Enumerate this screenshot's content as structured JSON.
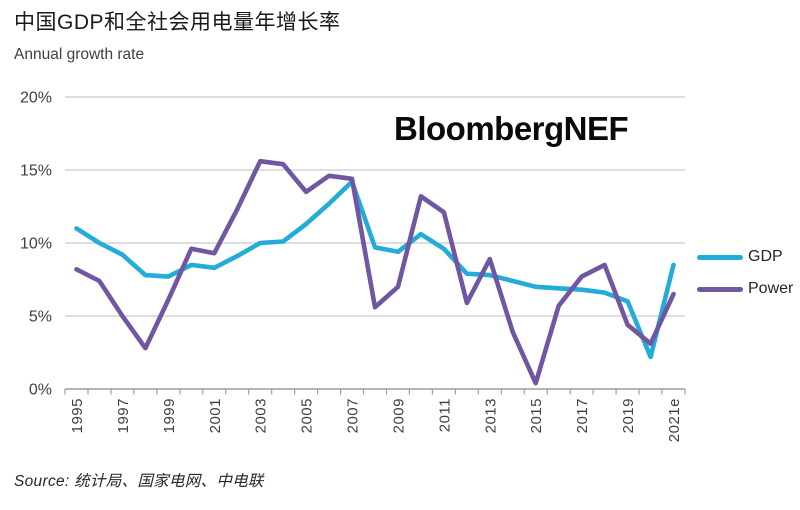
{
  "header": {
    "title": "中国GDP和全社会用电量年增长率",
    "subtitle": "Annual growth rate"
  },
  "watermark": "BloombergNEF",
  "source": {
    "text": "Source: 统计局、国家电网、中电联"
  },
  "colors": {
    "gdp_line": "#24acd8",
    "power_line": "#7157a2",
    "gridline": "#c9c9c9",
    "axis": "#9e9e9e",
    "axis_text": "#404040"
  },
  "chart_data": {
    "type": "line",
    "title": "中国GDP和全社会用电量年增长率",
    "subtitle": "Annual growth rate",
    "xlabel": "",
    "ylabel": "Annual growth rate (%)",
    "categories": [
      "1995",
      "1996",
      "1997",
      "1998",
      "1999",
      "2000",
      "2001",
      "2002",
      "2003",
      "2004",
      "2005",
      "2006",
      "2007",
      "2008",
      "2009",
      "2010",
      "2011",
      "2012",
      "2013",
      "2014",
      "2015",
      "2016",
      "2017",
      "2018",
      "2019",
      "2020",
      "2021e"
    ],
    "xtick_label_step": 2,
    "series": [
      {
        "name": "GDP",
        "color": "#24acd8",
        "values": [
          11.0,
          10.0,
          9.2,
          7.8,
          7.7,
          8.5,
          8.3,
          9.1,
          10.0,
          10.1,
          11.3,
          12.7,
          14.2,
          9.7,
          9.4,
          10.6,
          9.6,
          7.9,
          7.8,
          7.4,
          7.0,
          6.9,
          6.8,
          6.6,
          6.0,
          2.2,
          8.5
        ]
      },
      {
        "name": "Power",
        "color": "#7157a2",
        "values": [
          8.2,
          7.4,
          5.0,
          2.8,
          6.1,
          9.6,
          9.3,
          12.3,
          15.6,
          15.4,
          13.5,
          14.6,
          14.4,
          5.6,
          7.0,
          13.2,
          12.1,
          5.9,
          8.9,
          3.9,
          0.4,
          5.7,
          7.7,
          8.5,
          4.4,
          3.1,
          6.5
        ]
      }
    ],
    "ylim": [
      0,
      20
    ],
    "yticks": [
      0,
      5,
      10,
      15,
      20
    ],
    "ytick_format": "{v}%",
    "grid": "horizontal",
    "legend_position": "right"
  }
}
